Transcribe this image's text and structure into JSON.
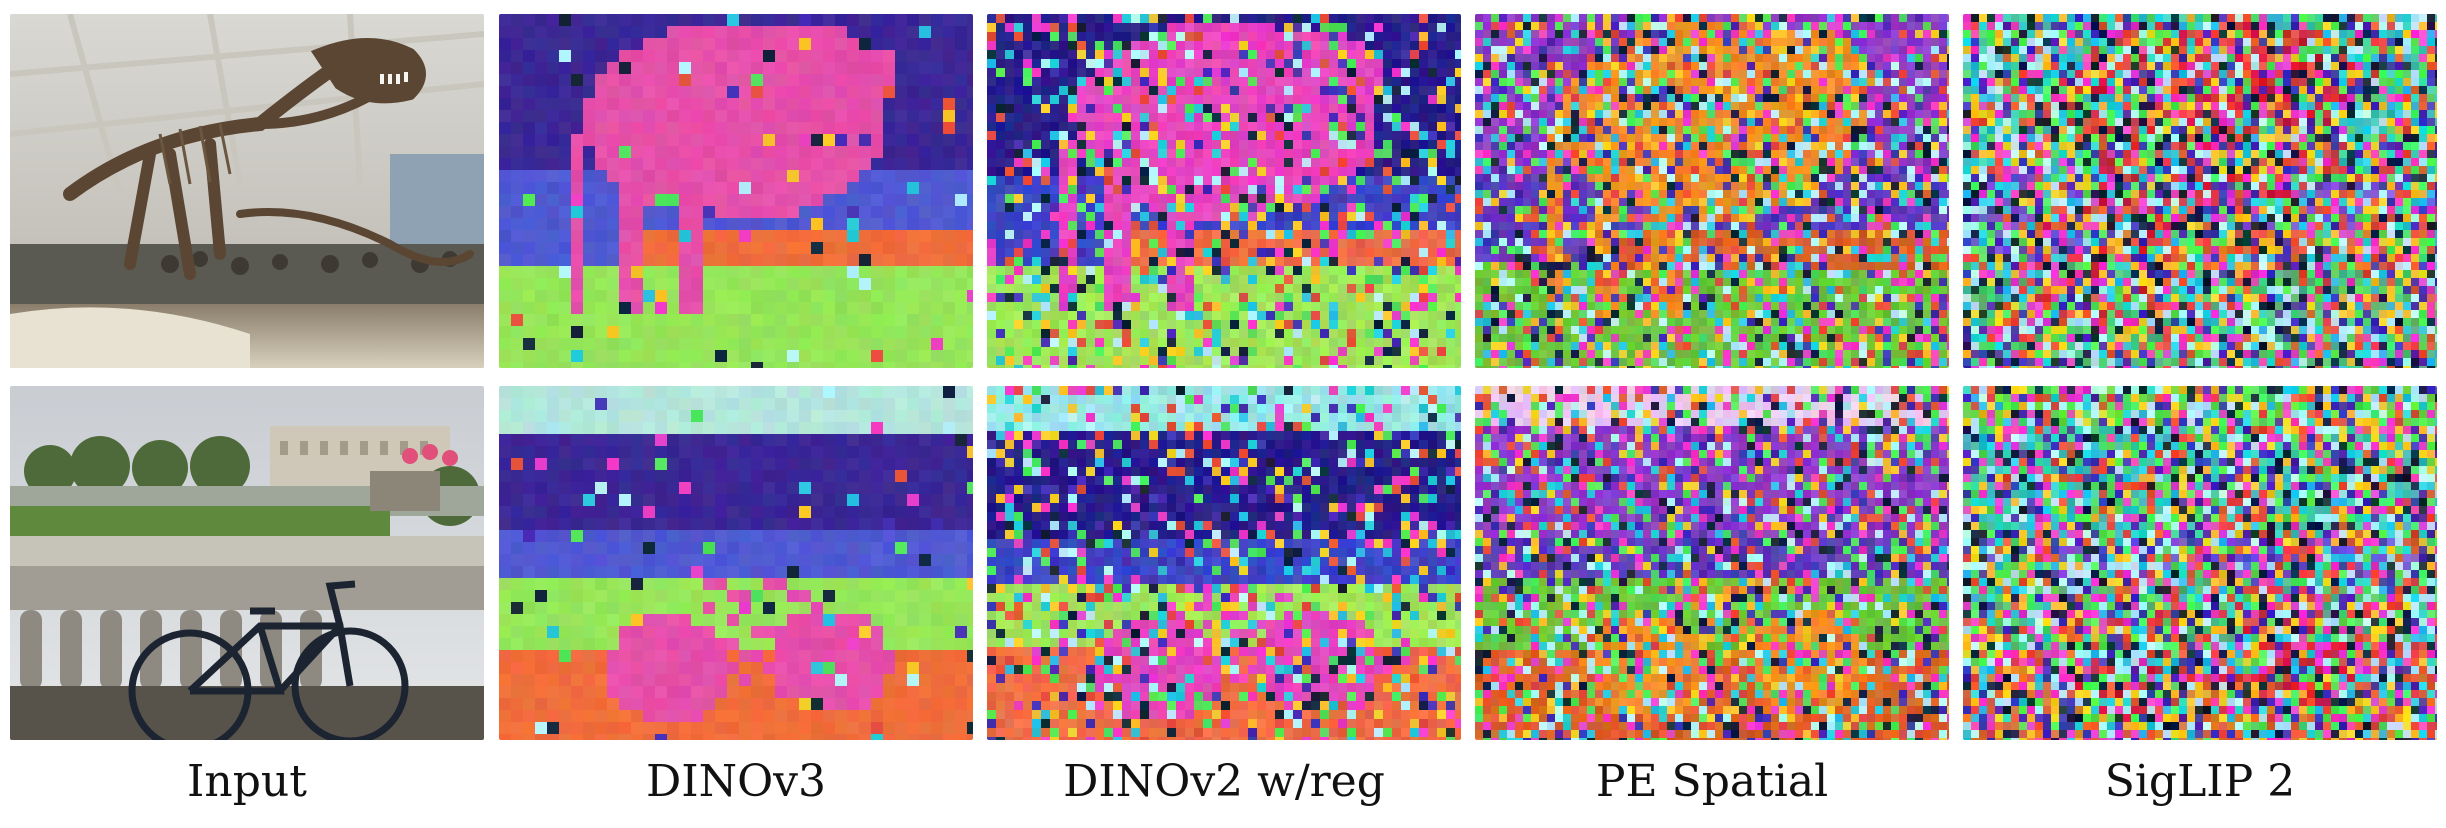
{
  "figure": {
    "columns": [
      {
        "label": "Input",
        "kind": "photo"
      },
      {
        "label": "DINOv3",
        "kind": "pca",
        "noise": 0.05,
        "block": 12
      },
      {
        "label": "DINOv2 w/reg",
        "kind": "pca",
        "noise": 0.35,
        "block": 9
      },
      {
        "label": "PE Spatial",
        "kind": "pca",
        "noise": 0.55,
        "block": 8
      },
      {
        "label": "SigLIP 2",
        "kind": "pca",
        "noise": 0.85,
        "block": 8
      }
    ],
    "rows": [
      {
        "scene": "dinosaur skeleton in museum hall"
      },
      {
        "scene": "bicycle in front of park balustrade and palace"
      }
    ]
  }
}
